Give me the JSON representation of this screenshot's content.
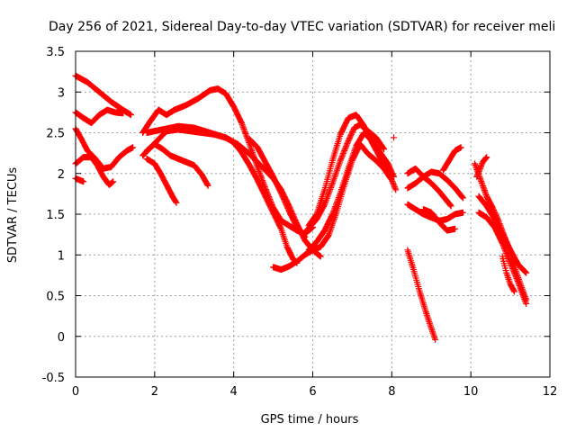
{
  "chart_data": {
    "type": "scatter",
    "title": "Day 256 of 2021, Sidereal Day-to-day VTEC variation (SDTVAR) for receiver meli",
    "xlabel": "GPS time / hours",
    "ylabel": "SDTVAR / TECUs",
    "xlim": [
      0,
      12
    ],
    "ylim": [
      -0.5,
      3.5
    ],
    "xticks": [
      0,
      2,
      4,
      6,
      8,
      10,
      12
    ],
    "yticks": [
      -0.5,
      0,
      0.5,
      1,
      1.5,
      2,
      2.5,
      3,
      3.5
    ],
    "grid": true,
    "marker": "+",
    "color": "#ff0000",
    "series": [
      {
        "name": "s1",
        "points": [
          [
            0.0,
            3.2
          ],
          [
            0.3,
            3.12
          ],
          [
            0.6,
            3.0
          ],
          [
            0.9,
            2.88
          ],
          [
            1.2,
            2.78
          ],
          [
            1.4,
            2.72
          ]
        ]
      },
      {
        "name": "s2",
        "points": [
          [
            0.0,
            2.75
          ],
          [
            0.2,
            2.68
          ],
          [
            0.4,
            2.62
          ],
          [
            0.6,
            2.72
          ],
          [
            0.8,
            2.78
          ],
          [
            1.0,
            2.75
          ],
          [
            1.2,
            2.74
          ]
        ]
      },
      {
        "name": "s3",
        "points": [
          [
            0.0,
            2.55
          ],
          [
            0.15,
            2.42
          ],
          [
            0.3,
            2.28
          ],
          [
            0.5,
            2.18
          ],
          [
            0.7,
            2.06
          ],
          [
            0.9,
            2.08
          ],
          [
            1.1,
            2.2
          ],
          [
            1.3,
            2.28
          ],
          [
            1.45,
            2.32
          ]
        ]
      },
      {
        "name": "s4",
        "points": [
          [
            0.0,
            2.12
          ],
          [
            0.2,
            2.2
          ],
          [
            0.4,
            2.2
          ],
          [
            0.55,
            2.1
          ],
          [
            0.7,
            1.96
          ],
          [
            0.85,
            1.86
          ],
          [
            0.95,
            1.9
          ]
        ]
      },
      {
        "name": "s5",
        "points": [
          [
            0.0,
            1.94
          ],
          [
            0.2,
            1.9
          ]
        ]
      },
      {
        "name": "s6",
        "points": [
          [
            1.7,
            2.5
          ],
          [
            1.9,
            2.65
          ],
          [
            2.1,
            2.78
          ],
          [
            2.3,
            2.72
          ],
          [
            2.5,
            2.78
          ],
          [
            2.8,
            2.84
          ],
          [
            3.1,
            2.92
          ],
          [
            3.4,
            3.02
          ],
          [
            3.6,
            3.04
          ],
          [
            3.8,
            2.98
          ],
          [
            4.0,
            2.82
          ],
          [
            4.2,
            2.62
          ],
          [
            4.4,
            2.36
          ],
          [
            4.6,
            2.08
          ],
          [
            4.8,
            1.82
          ],
          [
            5.0,
            1.58
          ],
          [
            5.2,
            1.42
          ],
          [
            5.4,
            1.36
          ],
          [
            5.6,
            1.3
          ],
          [
            5.8,
            1.26
          ],
          [
            6.0,
            1.34
          ]
        ]
      },
      {
        "name": "s7",
        "points": [
          [
            1.7,
            2.22
          ],
          [
            1.9,
            2.32
          ],
          [
            2.1,
            2.42
          ],
          [
            2.3,
            2.52
          ],
          [
            2.6,
            2.54
          ],
          [
            2.9,
            2.52
          ],
          [
            3.2,
            2.5
          ],
          [
            3.5,
            2.48
          ],
          [
            3.8,
            2.44
          ],
          [
            4.0,
            2.38
          ],
          [
            4.2,
            2.26
          ],
          [
            4.4,
            2.1
          ],
          [
            4.6,
            1.92
          ],
          [
            4.8,
            1.72
          ],
          [
            5.0,
            1.52
          ],
          [
            5.2,
            1.32
          ],
          [
            5.35,
            1.1
          ],
          [
            5.5,
            0.95
          ],
          [
            5.6,
            0.9
          ]
        ]
      },
      {
        "name": "s8",
        "points": [
          [
            1.8,
            2.28
          ],
          [
            2.0,
            2.36
          ],
          [
            2.2,
            2.3
          ],
          [
            2.4,
            2.22
          ],
          [
            2.7,
            2.16
          ],
          [
            3.0,
            2.1
          ],
          [
            3.2,
            1.98
          ],
          [
            3.35,
            1.85
          ]
        ]
      },
      {
        "name": "s9",
        "points": [
          [
            1.8,
            2.18
          ],
          [
            2.0,
            2.12
          ],
          [
            2.15,
            2.0
          ],
          [
            2.3,
            1.86
          ],
          [
            2.45,
            1.72
          ],
          [
            2.55,
            1.64
          ]
        ]
      },
      {
        "name": "s10",
        "points": [
          [
            1.8,
            2.5
          ],
          [
            2.2,
            2.54
          ],
          [
            2.6,
            2.58
          ],
          [
            3.0,
            2.56
          ],
          [
            3.4,
            2.5
          ],
          [
            3.8,
            2.44
          ],
          [
            4.1,
            2.36
          ],
          [
            4.4,
            2.24
          ],
          [
            4.6,
            2.14
          ],
          [
            4.8,
            2.04
          ],
          [
            5.0,
            1.94
          ],
          [
            5.2,
            1.8
          ],
          [
            5.4,
            1.6
          ],
          [
            5.6,
            1.38
          ],
          [
            5.8,
            1.18
          ],
          [
            6.0,
            1.06
          ],
          [
            6.2,
            0.98
          ]
        ]
      },
      {
        "name": "s11",
        "points": [
          [
            4.4,
            2.42
          ],
          [
            4.6,
            2.32
          ],
          [
            4.8,
            2.14
          ],
          [
            5.0,
            1.96
          ],
          [
            5.2,
            1.76
          ],
          [
            5.4,
            1.54
          ],
          [
            5.6,
            1.34
          ],
          [
            5.8,
            1.22
          ]
        ]
      },
      {
        "name": "s12",
        "points": [
          [
            5.0,
            0.85
          ],
          [
            5.2,
            0.82
          ],
          [
            5.4,
            0.86
          ],
          [
            5.6,
            0.92
          ],
          [
            5.8,
            1.0
          ],
          [
            6.0,
            1.06
          ],
          [
            6.2,
            1.1
          ],
          [
            6.4,
            1.24
          ],
          [
            6.6,
            1.52
          ],
          [
            6.8,
            1.86
          ],
          [
            7.0,
            2.16
          ],
          [
            7.2,
            2.36
          ],
          [
            7.4,
            2.24
          ],
          [
            7.6,
            2.16
          ],
          [
            7.8,
            2.06
          ],
          [
            8.0,
            1.92
          ],
          [
            8.1,
            1.8
          ]
        ]
      },
      {
        "name": "s13",
        "points": [
          [
            5.9,
            1.36
          ],
          [
            6.1,
            1.5
          ],
          [
            6.3,
            1.8
          ],
          [
            6.5,
            2.16
          ],
          [
            6.7,
            2.48
          ],
          [
            6.9,
            2.68
          ],
          [
            7.1,
            2.72
          ],
          [
            7.3,
            2.58
          ],
          [
            7.5,
            2.38
          ],
          [
            7.7,
            2.2
          ],
          [
            7.9,
            2.06
          ],
          [
            8.0,
            1.96
          ]
        ]
      },
      {
        "name": "s14",
        "points": [
          [
            5.9,
            1.06
          ],
          [
            6.1,
            1.16
          ],
          [
            6.3,
            1.3
          ],
          [
            6.5,
            1.5
          ],
          [
            6.7,
            1.76
          ],
          [
            6.9,
            2.06
          ],
          [
            7.1,
            2.34
          ],
          [
            7.3,
            2.5
          ],
          [
            7.5,
            2.4
          ],
          [
            7.7,
            2.26
          ],
          [
            7.9,
            2.12
          ],
          [
            8.05,
            1.96
          ]
        ]
      },
      {
        "name": "s15",
        "points": [
          [
            5.85,
            1.3
          ],
          [
            6.1,
            1.44
          ],
          [
            6.3,
            1.62
          ],
          [
            6.5,
            1.88
          ],
          [
            6.7,
            2.16
          ],
          [
            6.9,
            2.4
          ],
          [
            7.05,
            2.56
          ],
          [
            7.2,
            2.6
          ],
          [
            7.4,
            2.52
          ],
          [
            7.6,
            2.44
          ],
          [
            7.8,
            2.3
          ]
        ]
      },
      {
        "name": "s16",
        "points": [
          [
            8.05,
            2.44
          ]
        ]
      },
      {
        "name": "s17",
        "points": [
          [
            8.4,
            1.62
          ],
          [
            8.6,
            1.56
          ],
          [
            8.8,
            1.5
          ],
          [
            9.0,
            1.46
          ],
          [
            9.2,
            1.42
          ],
          [
            9.4,
            1.44
          ],
          [
            9.6,
            1.5
          ],
          [
            9.8,
            1.52
          ]
        ]
      },
      {
        "name": "s18",
        "points": [
          [
            8.4,
            2.0
          ],
          [
            8.6,
            2.06
          ],
          [
            8.8,
            1.96
          ],
          [
            9.0,
            1.88
          ],
          [
            9.2,
            1.78
          ],
          [
            9.4,
            1.66
          ],
          [
            9.5,
            1.6
          ]
        ]
      },
      {
        "name": "s19",
        "points": [
          [
            8.4,
            1.82
          ],
          [
            8.6,
            1.88
          ],
          [
            8.8,
            1.96
          ],
          [
            9.0,
            2.02
          ],
          [
            9.2,
            2.0
          ],
          [
            9.4,
            1.92
          ],
          [
            9.6,
            1.82
          ],
          [
            9.8,
            1.7
          ]
        ]
      },
      {
        "name": "s20",
        "points": [
          [
            8.8,
            1.56
          ],
          [
            9.0,
            1.52
          ],
          [
            9.2,
            1.4
          ],
          [
            9.4,
            1.3
          ],
          [
            9.6,
            1.32
          ]
        ]
      },
      {
        "name": "s21",
        "points": [
          [
            8.4,
            1.06
          ],
          [
            8.55,
            0.82
          ],
          [
            8.7,
            0.56
          ],
          [
            8.85,
            0.32
          ],
          [
            9.0,
            0.1
          ],
          [
            9.1,
            -0.04
          ]
        ]
      },
      {
        "name": "s22",
        "points": [
          [
            9.3,
            2.04
          ],
          [
            9.45,
            2.16
          ],
          [
            9.6,
            2.28
          ],
          [
            9.75,
            2.32
          ]
        ]
      },
      {
        "name": "s23",
        "points": [
          [
            10.1,
            2.12
          ],
          [
            10.25,
            1.92
          ],
          [
            10.4,
            1.72
          ],
          [
            10.55,
            1.58
          ],
          [
            10.7,
            1.42
          ],
          [
            10.9,
            1.16
          ],
          [
            11.1,
            0.86
          ],
          [
            11.3,
            0.58
          ],
          [
            11.4,
            0.45
          ]
        ]
      },
      {
        "name": "s24",
        "points": [
          [
            10.2,
            1.72
          ],
          [
            10.4,
            1.6
          ],
          [
            10.6,
            1.44
          ],
          [
            10.8,
            1.26
          ],
          [
            11.0,
            1.06
          ],
          [
            11.2,
            0.88
          ],
          [
            11.4,
            0.78
          ]
        ]
      },
      {
        "name": "s25",
        "points": [
          [
            10.2,
            1.52
          ],
          [
            10.4,
            1.46
          ],
          [
            10.6,
            1.34
          ],
          [
            10.8,
            1.14
          ],
          [
            11.0,
            0.9
          ],
          [
            11.2,
            0.66
          ],
          [
            11.4,
            0.4
          ]
        ]
      },
      {
        "name": "s26",
        "points": [
          [
            10.15,
            1.96
          ],
          [
            10.3,
            2.14
          ],
          [
            10.4,
            2.2
          ]
        ]
      },
      {
        "name": "s27",
        "points": [
          [
            10.8,
            0.98
          ],
          [
            10.9,
            0.78
          ],
          [
            11.0,
            0.64
          ],
          [
            11.1,
            0.55
          ]
        ]
      }
    ]
  }
}
